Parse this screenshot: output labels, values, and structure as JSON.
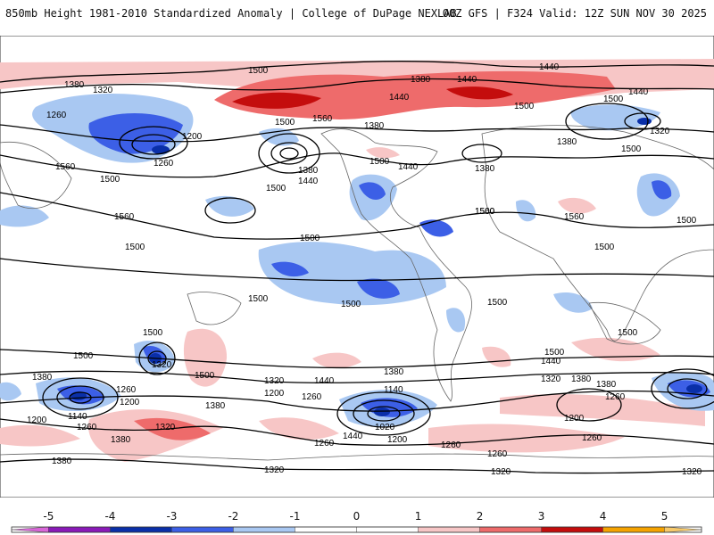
{
  "header": {
    "title": "850mb Height 1981-2010 Standardized Anomaly | College of DuPage NEXLAB",
    "run_info": "00Z GFS | F324 Valid: 12Z SUN NOV 30 2025"
  },
  "colorbar": {
    "ticks": [
      "-5",
      "-4",
      "-3",
      "-2",
      "-1",
      "0",
      "1",
      "2",
      "3",
      "4",
      "5"
    ],
    "bins": [
      {
        "range": "<-5",
        "color": "#d966d9"
      },
      {
        "range": "-5..-4",
        "color": "#8a1ab8"
      },
      {
        "range": "-4..-3",
        "color": "#0a2fa8"
      },
      {
        "range": "-3..-2",
        "color": "#3c5fe6"
      },
      {
        "range": "-2..-1",
        "color": "#a9c8f2"
      },
      {
        "range": "-1..0",
        "color": "#ffffff"
      },
      {
        "range": "0..1",
        "color": "#ffffff"
      },
      {
        "range": "1..2",
        "color": "#f7c6c6"
      },
      {
        "range": "2..3",
        "color": "#ee6b6b"
      },
      {
        "range": "3..4",
        "color": "#c40d0d"
      },
      {
        "range": "4..5",
        "color": "#f5a300"
      },
      {
        "range": ">5",
        "color": "#f7c96a"
      }
    ]
  },
  "contour_labels": [
    "1380",
    "1320",
    "1500",
    "1440",
    "1440",
    "1380",
    "1440",
    "1260",
    "1200",
    "1500",
    "1560",
    "1380",
    "1500",
    "1320",
    "1440",
    "1500",
    "1380",
    "1260",
    "1500",
    "1560",
    "1500",
    "1380",
    "1440",
    "1500",
    "1440",
    "1380",
    "1500",
    "1500",
    "1560",
    "1560",
    "1560",
    "1500",
    "1500",
    "1500",
    "1500",
    "1500",
    "1500",
    "1500",
    "1500",
    "1500",
    "1500",
    "1440",
    "1320",
    "1500",
    "1440",
    "1380",
    "1320",
    "1380",
    "1500",
    "1380",
    "1260",
    "1200",
    "1320",
    "1200",
    "1260",
    "1140",
    "1380",
    "1440",
    "1260",
    "1260",
    "1200",
    "1320",
    "1380",
    "1140",
    "1260",
    "1200",
    "1380",
    "1260",
    "1020",
    "1200",
    "1260",
    "1260",
    "1320",
    "1320",
    "1380",
    "1320"
  ]
}
